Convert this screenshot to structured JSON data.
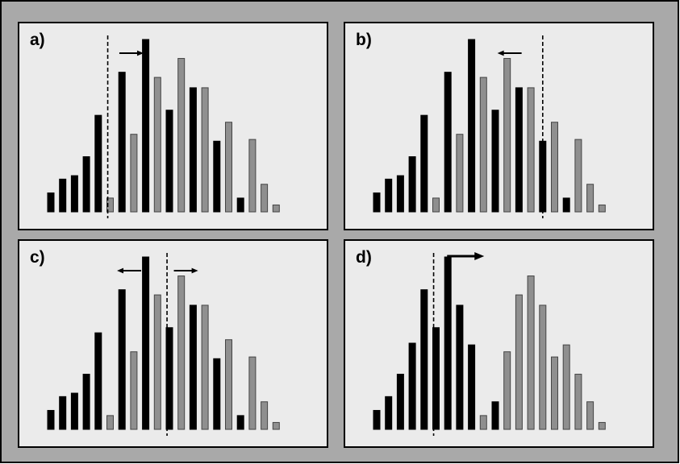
{
  "figure": {
    "background": "#a9a9a9",
    "panel_fill": "#ebebeb",
    "bar_colors": {
      "black": "#000000",
      "gray": "#8f8f8f"
    },
    "panels": [
      {
        "label": "a)",
        "bars": [
          {
            "v": 0.11,
            "c": "black"
          },
          {
            "v": 0.19,
            "c": "black"
          },
          {
            "v": 0.21,
            "c": "black"
          },
          {
            "v": 0.32,
            "c": "black"
          },
          {
            "v": 0.56,
            "c": "black"
          },
          {
            "v": 0.08,
            "c": "gray"
          },
          {
            "v": 0.81,
            "c": "black"
          },
          {
            "v": 0.45,
            "c": "gray"
          },
          {
            "v": 1.0,
            "c": "black"
          },
          {
            "v": 0.78,
            "c": "gray"
          },
          {
            "v": 0.59,
            "c": "black"
          },
          {
            "v": 0.89,
            "c": "gray"
          },
          {
            "v": 0.72,
            "c": "black"
          },
          {
            "v": 0.72,
            "c": "gray"
          },
          {
            "v": 0.41,
            "c": "black"
          },
          {
            "v": 0.52,
            "c": "gray"
          },
          {
            "v": 0.08,
            "c": "black"
          },
          {
            "v": 0.42,
            "c": "gray"
          },
          {
            "v": 0.16,
            "c": "gray"
          },
          {
            "v": 0.04,
            "c": "gray"
          }
        ],
        "divider_after_bar": 4.8,
        "arrows": [
          {
            "direction": "right",
            "after_bar": 6.8
          }
        ]
      },
      {
        "label": "b)",
        "bars": [
          {
            "v": 0.11,
            "c": "black"
          },
          {
            "v": 0.19,
            "c": "black"
          },
          {
            "v": 0.21,
            "c": "black"
          },
          {
            "v": 0.32,
            "c": "black"
          },
          {
            "v": 0.56,
            "c": "black"
          },
          {
            "v": 0.08,
            "c": "gray"
          },
          {
            "v": 0.81,
            "c": "black"
          },
          {
            "v": 0.45,
            "c": "gray"
          },
          {
            "v": 1.0,
            "c": "black"
          },
          {
            "v": 0.78,
            "c": "gray"
          },
          {
            "v": 0.59,
            "c": "black"
          },
          {
            "v": 0.89,
            "c": "gray"
          },
          {
            "v": 0.72,
            "c": "black"
          },
          {
            "v": 0.72,
            "c": "gray"
          },
          {
            "v": 0.41,
            "c": "black"
          },
          {
            "v": 0.52,
            "c": "gray"
          },
          {
            "v": 0.08,
            "c": "black"
          },
          {
            "v": 0.42,
            "c": "gray"
          },
          {
            "v": 0.16,
            "c": "gray"
          },
          {
            "v": 0.04,
            "c": "gray"
          }
        ],
        "divider_after_bar": 14.0,
        "arrows": [
          {
            "direction": "left",
            "after_bar": 11.2
          }
        ]
      },
      {
        "label": "c)",
        "bars": [
          {
            "v": 0.11,
            "c": "black"
          },
          {
            "v": 0.19,
            "c": "black"
          },
          {
            "v": 0.21,
            "c": "black"
          },
          {
            "v": 0.32,
            "c": "black"
          },
          {
            "v": 0.56,
            "c": "black"
          },
          {
            "v": 0.08,
            "c": "gray"
          },
          {
            "v": 0.81,
            "c": "black"
          },
          {
            "v": 0.45,
            "c": "gray"
          },
          {
            "v": 1.0,
            "c": "black"
          },
          {
            "v": 0.78,
            "c": "gray"
          },
          {
            "v": 0.59,
            "c": "black"
          },
          {
            "v": 0.89,
            "c": "gray"
          },
          {
            "v": 0.72,
            "c": "black"
          },
          {
            "v": 0.72,
            "c": "gray"
          },
          {
            "v": 0.41,
            "c": "black"
          },
          {
            "v": 0.52,
            "c": "gray"
          },
          {
            "v": 0.08,
            "c": "black"
          },
          {
            "v": 0.42,
            "c": "gray"
          },
          {
            "v": 0.16,
            "c": "gray"
          },
          {
            "v": 0.04,
            "c": "gray"
          }
        ],
        "divider_after_bar": 9.8,
        "arrows": [
          {
            "direction": "left",
            "after_bar": 6.6
          },
          {
            "direction": "right",
            "after_bar": 11.4
          }
        ]
      },
      {
        "label": "d)",
        "bars": [
          {
            "v": 0.11,
            "c": "black"
          },
          {
            "v": 0.19,
            "c": "black"
          },
          {
            "v": 0.32,
            "c": "black"
          },
          {
            "v": 0.5,
            "c": "black"
          },
          {
            "v": 0.81,
            "c": "black"
          },
          {
            "v": 0.59,
            "c": "black"
          },
          {
            "v": 1.0,
            "c": "black"
          },
          {
            "v": 0.72,
            "c": "black"
          },
          {
            "v": 0.49,
            "c": "black"
          },
          {
            "v": 0.08,
            "c": "gray"
          },
          {
            "v": 0.16,
            "c": "black"
          },
          {
            "v": 0.45,
            "c": "gray"
          },
          {
            "v": 0.78,
            "c": "gray"
          },
          {
            "v": 0.89,
            "c": "gray"
          },
          {
            "v": 0.72,
            "c": "gray"
          },
          {
            "v": 0.42,
            "c": "gray"
          },
          {
            "v": 0.49,
            "c": "gray"
          },
          {
            "v": 0.32,
            "c": "gray"
          },
          {
            "v": 0.16,
            "c": "gray"
          },
          {
            "v": 0.04,
            "c": "gray"
          }
        ],
        "divider_after_bar": 4.8,
        "arrows": [
          {
            "direction": "right",
            "after_bar": 7.5,
            "large": true
          }
        ]
      }
    ]
  }
}
